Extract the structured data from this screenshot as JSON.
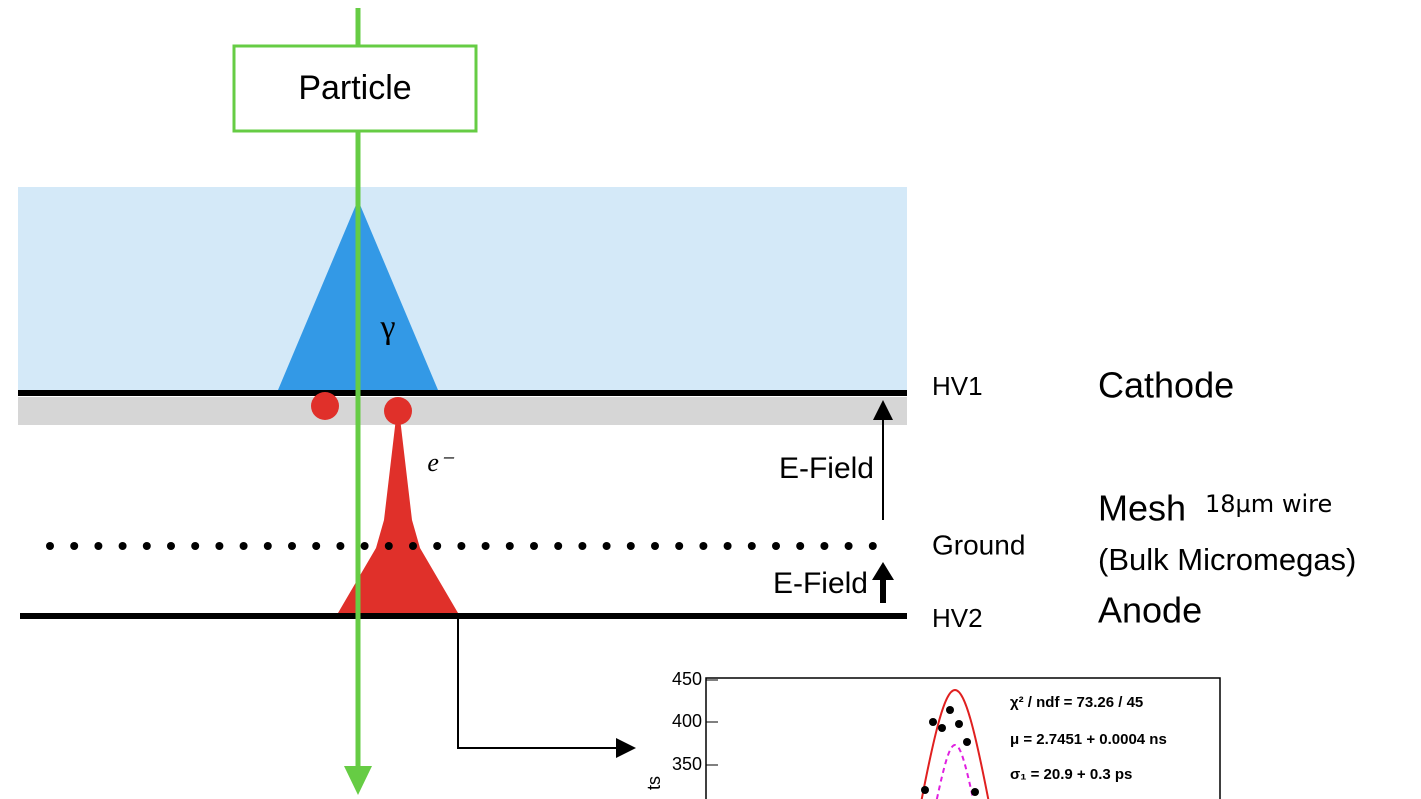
{
  "particle_box": {
    "label": "Particle"
  },
  "photon": {
    "label": "γ"
  },
  "electron": {
    "label": "e⁻"
  },
  "electrodes": {
    "cathode": {
      "voltage": "HV1",
      "name": "Cathode"
    },
    "mesh": {
      "voltage": "Ground",
      "name": "Mesh",
      "note": "18µm wire",
      "detail": "(Bulk Micromegas)"
    },
    "anode": {
      "voltage": "HV2",
      "name": "Anode"
    }
  },
  "fields": {
    "upper": "E-Field",
    "lower": "E-Field"
  },
  "inset": {
    "yticks": [
      "450",
      "400",
      "350"
    ],
    "ylabel": "ts",
    "stats": [
      "χ² / ndf = 73.26 / 45",
      "μ = 2.7451 + 0.0004 ns",
      "σ₁ = 20.9 + 0.3 ps"
    ]
  }
}
